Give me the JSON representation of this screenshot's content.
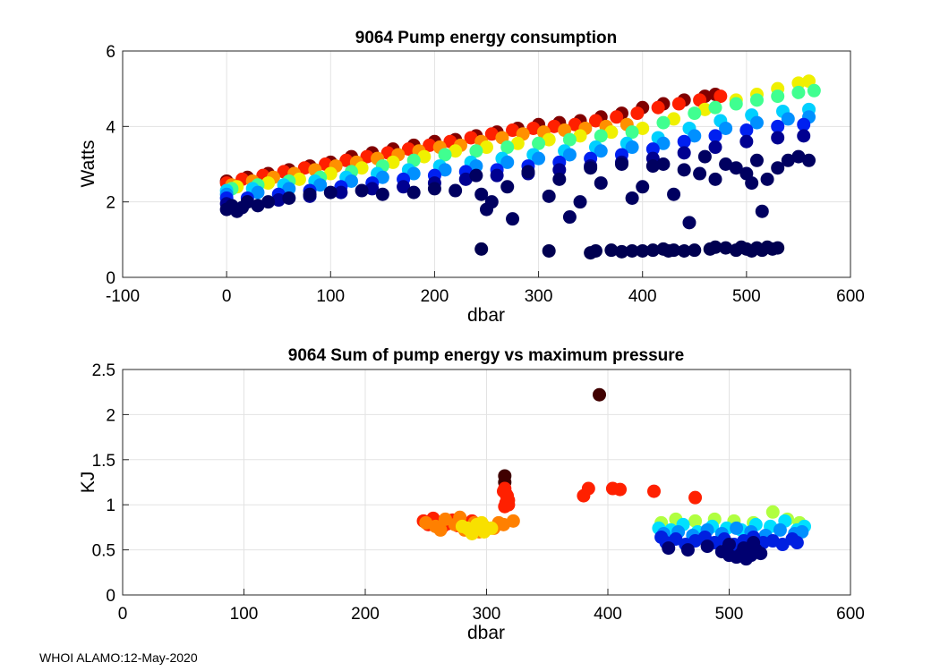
{
  "footer": "WHOI ALAMO:12-May-2020",
  "chart_data": [
    {
      "type": "scatter",
      "title": "9064 Pump energy consumption",
      "xlabel": "dbar",
      "ylabel": "Watts",
      "xlim": [
        -100,
        600
      ],
      "ylim": [
        0,
        6
      ],
      "xticks": [
        -100,
        0,
        100,
        200,
        300,
        400,
        500,
        600
      ],
      "yticks": [
        0,
        2,
        4,
        6
      ],
      "grid": true,
      "colormap": "jet",
      "groups": [
        {
          "name": "dark-red band",
          "color": "#800000",
          "x": [
            0,
            20,
            40,
            60,
            80,
            100,
            120,
            140,
            160,
            180,
            200,
            220,
            240,
            260,
            280,
            300,
            320,
            340,
            360,
            380,
            400,
            420,
            440,
            460,
            470
          ],
          "y": [
            2.55,
            2.65,
            2.75,
            2.85,
            2.95,
            3.05,
            3.2,
            3.3,
            3.4,
            3.5,
            3.6,
            3.65,
            3.75,
            3.85,
            3.95,
            4.05,
            4.1,
            4.15,
            4.25,
            4.35,
            4.5,
            4.6,
            4.7,
            4.8,
            4.85
          ]
        },
        {
          "name": "red band",
          "color": "#ff2000",
          "x": [
            0,
            15,
            35,
            55,
            75,
            95,
            115,
            135,
            155,
            175,
            195,
            215,
            235,
            255,
            275,
            295,
            315,
            335,
            355,
            375,
            395,
            415,
            435,
            455,
            475
          ],
          "y": [
            2.5,
            2.6,
            2.7,
            2.8,
            2.9,
            3.0,
            3.1,
            3.2,
            3.3,
            3.4,
            3.5,
            3.6,
            3.7,
            3.8,
            3.9,
            3.95,
            4.0,
            4.05,
            4.15,
            4.25,
            4.35,
            4.5,
            4.6,
            4.7,
            4.8
          ]
        },
        {
          "name": "orange band",
          "color": "#ff9000",
          "x": [
            5,
            25,
            45,
            65,
            85,
            105,
            125,
            145,
            165,
            185,
            205,
            225,
            245,
            265,
            285,
            305,
            325,
            345,
            365,
            385
          ],
          "y": [
            2.45,
            2.55,
            2.65,
            2.75,
            2.85,
            2.95,
            3.05,
            3.15,
            3.25,
            3.35,
            3.45,
            3.5,
            3.6,
            3.7,
            3.8,
            3.85,
            3.9,
            3.95,
            4.0,
            4.05
          ]
        },
        {
          "name": "yellow band",
          "color": "#f0f000",
          "x": [
            10,
            40,
            70,
            100,
            130,
            160,
            190,
            220,
            250,
            280,
            310,
            340,
            370,
            400,
            430,
            460,
            490,
            510,
            530,
            550,
            560
          ],
          "y": [
            2.4,
            2.5,
            2.6,
            2.75,
            2.9,
            3.05,
            3.2,
            3.35,
            3.45,
            3.55,
            3.65,
            3.75,
            3.85,
            3.95,
            4.2,
            4.45,
            4.7,
            4.85,
            5.0,
            5.15,
            5.2
          ]
        },
        {
          "name": "green band",
          "color": "#40ff90",
          "x": [
            5,
            30,
            60,
            90,
            120,
            150,
            180,
            210,
            240,
            270,
            300,
            330,
            360,
            390,
            420,
            450,
            470,
            490,
            510,
            530,
            550,
            565
          ],
          "y": [
            2.35,
            2.45,
            2.55,
            2.65,
            2.8,
            2.95,
            3.1,
            3.25,
            3.35,
            3.45,
            3.55,
            3.65,
            3.75,
            3.85,
            4.1,
            4.35,
            4.5,
            4.6,
            4.7,
            4.8,
            4.9,
            4.95
          ]
        },
        {
          "name": "cyan band",
          "color": "#00d0ff",
          "x": [
            0,
            25,
            55,
            85,
            115,
            145,
            175,
            205,
            235,
            265,
            295,
            325,
            355,
            385,
            415,
            445,
            475,
            505,
            535,
            560
          ],
          "y": [
            2.3,
            2.35,
            2.45,
            2.55,
            2.65,
            2.75,
            2.85,
            2.95,
            3.05,
            3.15,
            3.25,
            3.35,
            3.45,
            3.55,
            3.7,
            3.95,
            4.15,
            4.3,
            4.4,
            4.45
          ]
        },
        {
          "name": "light-blue band",
          "color": "#0090ff",
          "x": [
            0,
            30,
            60,
            90,
            120,
            150,
            180,
            210,
            240,
            270,
            300,
            330,
            360,
            390,
            420,
            450,
            480,
            510,
            540,
            560
          ],
          "y": [
            2.2,
            2.25,
            2.35,
            2.45,
            2.55,
            2.65,
            2.75,
            2.85,
            2.95,
            3.05,
            3.15,
            3.25,
            3.35,
            3.45,
            3.55,
            3.75,
            3.95,
            4.1,
            4.2,
            4.25
          ]
        },
        {
          "name": "blue band",
          "color": "#0020f0",
          "x": [
            0,
            20,
            50,
            80,
            110,
            140,
            170,
            200,
            230,
            260,
            290,
            320,
            350,
            380,
            410,
            440,
            470,
            500,
            530,
            555
          ],
          "y": [
            2.1,
            2.1,
            2.2,
            2.3,
            2.4,
            2.5,
            2.6,
            2.7,
            2.8,
            2.85,
            2.95,
            3.05,
            3.15,
            3.25,
            3.4,
            3.6,
            3.75,
            3.9,
            4.0,
            4.05
          ]
        },
        {
          "name": "dark-blue band",
          "color": "#000090",
          "x": [
            0,
            20,
            50,
            80,
            110,
            140,
            170,
            200,
            230,
            260,
            290,
            320,
            350,
            380,
            410,
            440,
            470,
            500,
            530,
            555
          ],
          "y": [
            1.95,
            2.0,
            2.05,
            2.15,
            2.25,
            2.35,
            2.4,
            2.5,
            2.6,
            2.7,
            2.75,
            2.85,
            2.95,
            3.05,
            3.15,
            3.3,
            3.45,
            3.6,
            3.7,
            3.75
          ]
        },
        {
          "name": "navy scattered points",
          "color": "#000060",
          "x": [
            0,
            5,
            10,
            15,
            20,
            30,
            40,
            60,
            80,
            100,
            130,
            150,
            180,
            200,
            220,
            240,
            245,
            250,
            255,
            270,
            275,
            290,
            310,
            320,
            330,
            340,
            350,
            360,
            380,
            390,
            400,
            410,
            420,
            430,
            440,
            445,
            455,
            460,
            470,
            480,
            490,
            500,
            505,
            510,
            515,
            520,
            530,
            540,
            550,
            560
          ],
          "y": [
            1.8,
            1.9,
            1.75,
            1.85,
            2.0,
            1.9,
            2.0,
            2.1,
            2.2,
            2.25,
            2.3,
            2.2,
            2.25,
            2.35,
            2.3,
            2.7,
            2.2,
            1.8,
            2.0,
            2.4,
            1.55,
            2.8,
            2.15,
            2.6,
            1.6,
            2.0,
            2.9,
            2.5,
            3.0,
            2.1,
            2.4,
            2.95,
            3.0,
            2.2,
            2.85,
            1.45,
            2.75,
            3.2,
            2.6,
            3.0,
            2.9,
            2.75,
            2.5,
            3.1,
            1.75,
            2.6,
            2.9,
            3.1,
            3.2,
            3.1
          ]
        },
        {
          "name": "navy low cluster",
          "color": "#000050",
          "x": [
            245,
            310,
            350,
            355,
            370,
            380,
            390,
            400,
            410,
            420,
            425,
            430,
            440,
            450,
            465,
            470,
            480,
            490,
            495,
            500,
            505,
            510,
            515,
            520,
            525,
            530
          ],
          "y": [
            0.75,
            0.7,
            0.65,
            0.7,
            0.72,
            0.68,
            0.7,
            0.7,
            0.72,
            0.75,
            0.7,
            0.72,
            0.7,
            0.72,
            0.75,
            0.8,
            0.78,
            0.72,
            0.8,
            0.75,
            0.7,
            0.78,
            0.72,
            0.8,
            0.75,
            0.78
          ]
        }
      ]
    },
    {
      "type": "scatter",
      "title": "9064 Sum of pump energy vs maximum pressure",
      "xlabel": "dbar",
      "ylabel": "KJ",
      "xlim": [
        0,
        600
      ],
      "ylim": [
        0,
        2.5
      ],
      "xticks": [
        0,
        100,
        200,
        300,
        400,
        500,
        600
      ],
      "yticks": [
        0,
        0.5,
        1,
        1.5,
        2,
        2.5
      ],
      "grid": true,
      "colormap": "jet",
      "groups": [
        {
          "name": "dark-red",
          "color": "#400000",
          "x": [
            393,
            315,
            315,
            316
          ],
          "y": [
            2.22,
            1.32,
            1.25,
            1.0
          ]
        },
        {
          "name": "red",
          "color": "#ff2000",
          "x": [
            248,
            252,
            256,
            260,
            264,
            268,
            272,
            276,
            280,
            284,
            288,
            315,
            316,
            317,
            318,
            316,
            315,
            314,
            317,
            318,
            380,
            384,
            404,
            410,
            438,
            472
          ],
          "y": [
            0.82,
            0.78,
            0.85,
            0.8,
            0.76,
            0.79,
            0.83,
            0.77,
            0.8,
            0.78,
            0.82,
            1.18,
            1.12,
            1.08,
            1.05,
            1.02,
            0.98,
            1.15,
            1.1,
            1.0,
            1.1,
            1.18,
            1.18,
            1.17,
            1.15,
            1.08
          ]
        },
        {
          "name": "orange",
          "color": "#ff8000",
          "x": [
            250,
            258,
            266,
            274,
            282,
            290,
            298,
            306,
            314,
            322,
            262,
            278,
            294,
            310
          ],
          "y": [
            0.8,
            0.76,
            0.84,
            0.78,
            0.72,
            0.8,
            0.76,
            0.74,
            0.78,
            0.82,
            0.72,
            0.86,
            0.7,
            0.8
          ]
        },
        {
          "name": "yellow",
          "color": "#f8e000",
          "x": [
            280,
            286,
            292,
            298,
            304,
            288,
            296,
            284
          ],
          "y": [
            0.76,
            0.72,
            0.78,
            0.7,
            0.74,
            0.68,
            0.8,
            0.74
          ]
        },
        {
          "name": "green-yellow",
          "color": "#b0ff40",
          "x": [
            444,
            456,
            472,
            488,
            504,
            520,
            536,
            548,
            558
          ],
          "y": [
            0.8,
            0.84,
            0.82,
            0.84,
            0.82,
            0.8,
            0.92,
            0.84,
            0.8
          ]
        },
        {
          "name": "cyan",
          "color": "#00e0ff",
          "x": [
            442,
            452,
            462,
            474,
            486,
            498,
            510,
            522,
            534,
            546,
            556,
            562
          ],
          "y": [
            0.74,
            0.72,
            0.78,
            0.7,
            0.76,
            0.74,
            0.72,
            0.78,
            0.76,
            0.82,
            0.72,
            0.76
          ]
        },
        {
          "name": "light-blue",
          "color": "#0090ff",
          "x": [
            446,
            458,
            470,
            482,
            494,
            506,
            518,
            530,
            542,
            554,
            560
          ],
          "y": [
            0.68,
            0.7,
            0.66,
            0.72,
            0.68,
            0.74,
            0.7,
            0.66,
            0.72,
            0.68,
            0.7
          ]
        },
        {
          "name": "blue",
          "color": "#0020e0",
          "x": [
            444,
            448,
            456,
            464,
            472,
            480,
            488,
            496,
            504,
            512,
            520,
            528,
            536,
            544,
            552,
            556
          ],
          "y": [
            0.64,
            0.58,
            0.62,
            0.56,
            0.6,
            0.64,
            0.58,
            0.62,
            0.56,
            0.6,
            0.64,
            0.58,
            0.6,
            0.56,
            0.62,
            0.58
          ]
        },
        {
          "name": "navy",
          "color": "#000070",
          "x": [
            450,
            466,
            482,
            494,
            500,
            506,
            510,
            514,
            518,
            522,
            526,
            500,
            512,
            520
          ],
          "y": [
            0.52,
            0.5,
            0.54,
            0.48,
            0.44,
            0.42,
            0.46,
            0.4,
            0.44,
            0.5,
            0.46,
            0.56,
            0.52,
            0.58
          ]
        }
      ]
    }
  ]
}
